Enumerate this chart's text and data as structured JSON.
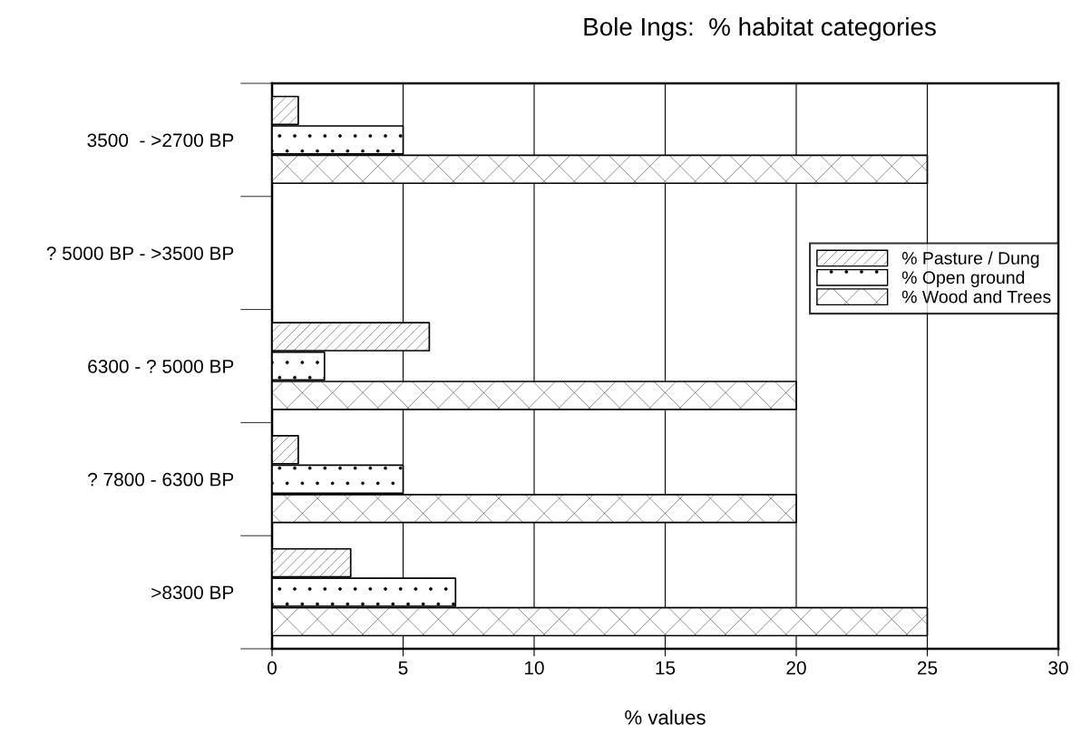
{
  "chart_data": {
    "type": "bar",
    "orientation": "horizontal",
    "title": "Bole Ings:  % habitat categories",
    "xlabel": "% values",
    "categories": [
      "3500  - >2700 BP",
      "? 5000 BP - >3500 BP",
      "6300 - ? 5000 BP",
      "? 7800 - 6300 BP",
      ">8300 BP"
    ],
    "series": [
      {
        "name": "% Pasture / Dung",
        "color": "#ffffff",
        "values": [
          1,
          null,
          6,
          1,
          3
        ]
      },
      {
        "name": "% Open ground",
        "color": "#ffffff",
        "values": [
          5,
          null,
          2,
          5,
          7
        ]
      },
      {
        "name": "% Wood and Trees",
        "color": "#ffffff",
        "values": [
          25,
          null,
          20,
          20,
          25
        ]
      }
    ],
    "xlim": [
      0,
      30
    ],
    "xticks": [
      0,
      5,
      10,
      15,
      20,
      25,
      30
    ],
    "grid": "x",
    "legend": "right"
  }
}
